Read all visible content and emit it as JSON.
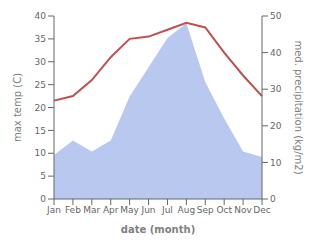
{
  "chart_data": {
    "type": "line",
    "categories": [
      "Jan",
      "Feb",
      "Mar",
      "Apr",
      "May",
      "Jun",
      "Jul",
      "Aug",
      "Sep",
      "Oct",
      "Nov",
      "Dec"
    ],
    "series": [
      {
        "type": "area",
        "axis": "y2",
        "color": "#b8c8ee",
        "values": [
          12.0,
          16.0,
          13.0,
          16.0,
          28.0,
          36.0,
          44.0,
          48.0,
          32.0,
          22.0,
          13.0,
          11.5
        ]
      },
      {
        "type": "line",
        "color": "#c0504d",
        "values": [
          21.5,
          22.5,
          26.0,
          31.0,
          35.0,
          35.5,
          37.0,
          38.5,
          37.5,
          32.0,
          27.0,
          22.5
        ]
      }
    ],
    "xlabel": "date (month)",
    "ylabel": "max temp (C)",
    "y2label": "med. precipitation (kg/m2)",
    "ylim": [
      0,
      40
    ],
    "yticks": [
      0,
      5,
      10,
      15,
      20,
      25,
      30,
      35,
      40
    ],
    "y2lim": [
      0,
      50
    ],
    "y2ticks": [
      0,
      10,
      20,
      30,
      40,
      50
    ],
    "grid": false
  }
}
